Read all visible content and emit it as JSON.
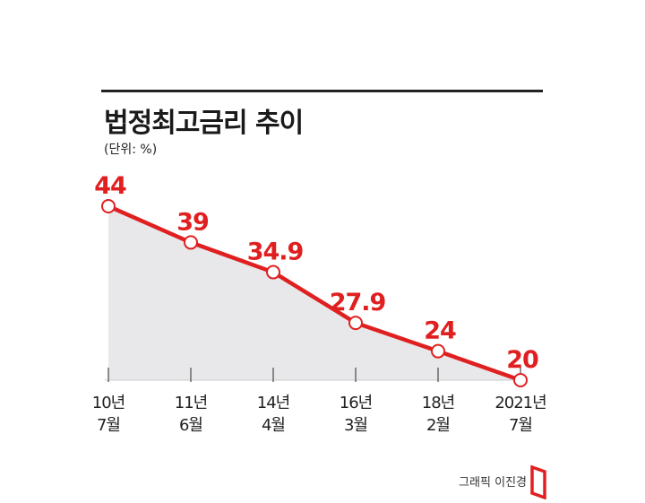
{
  "title": "법정최고금리 추이",
  "unit_label": "(단위: %)",
  "credit": "그래픽 이진경",
  "chart_data": {
    "type": "area",
    "title": "법정최고금리 추이",
    "ylabel": "(단위: %)",
    "categories": [
      [
        "10년",
        "7월"
      ],
      [
        "11년",
        "6월"
      ],
      [
        "14년",
        "4월"
      ],
      [
        "16년",
        "3월"
      ],
      [
        "18년",
        "2월"
      ],
      [
        "2021년",
        "7월"
      ]
    ],
    "values": [
      44,
      39,
      34.9,
      27.9,
      24,
      20
    ],
    "value_labels": [
      "44",
      "39",
      "34.9",
      "27.9",
      "24",
      "20"
    ],
    "ylim": [
      20,
      44
    ],
    "grid": false,
    "legend": "none"
  },
  "colors": {
    "line": "#e02020",
    "fill": "#e8e7ea",
    "axis": "#555555",
    "text": "#1a1a1a"
  }
}
